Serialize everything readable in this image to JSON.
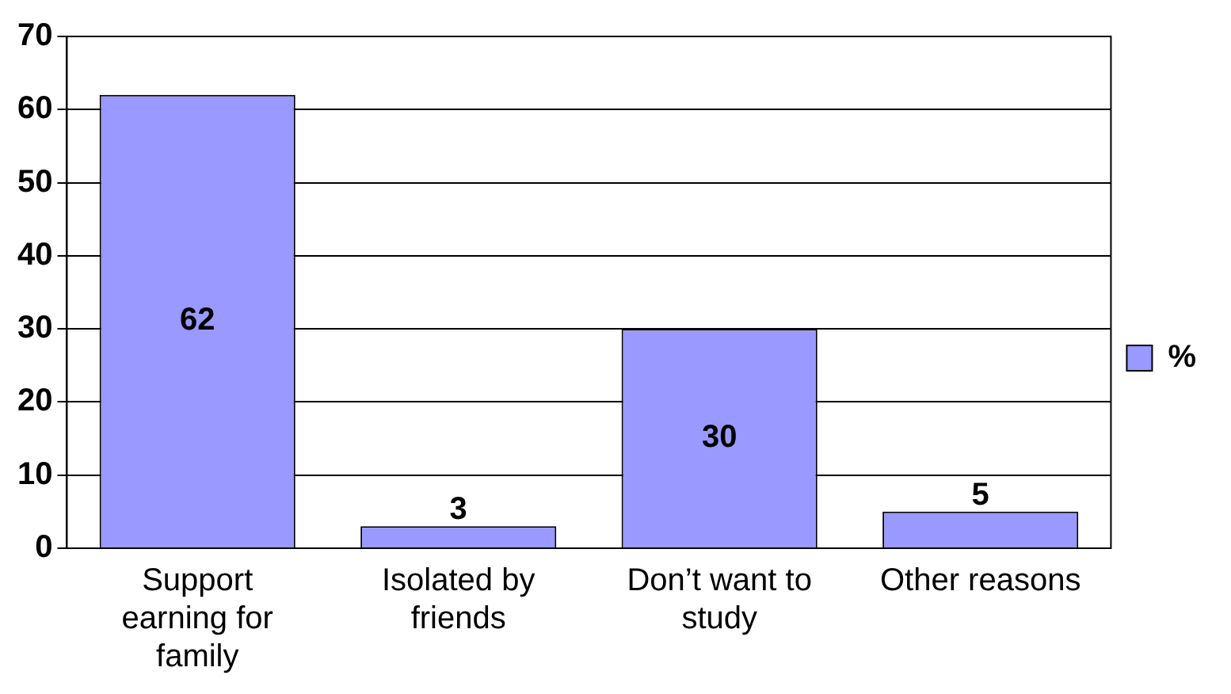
{
  "chart_data": {
    "type": "bar",
    "categories": [
      "Support earning for family",
      "Isolated by friends",
      "Don’t want to study",
      "Other reasons"
    ],
    "series": [
      {
        "name": "%",
        "color": "#9999ff",
        "values": [
          62,
          3,
          30,
          5
        ]
      }
    ],
    "ylim": [
      0,
      70
    ],
    "yticks": [
      0,
      10,
      20,
      30,
      40,
      50,
      60,
      70
    ],
    "grid": "y",
    "legend": "right",
    "data_labels": true
  }
}
